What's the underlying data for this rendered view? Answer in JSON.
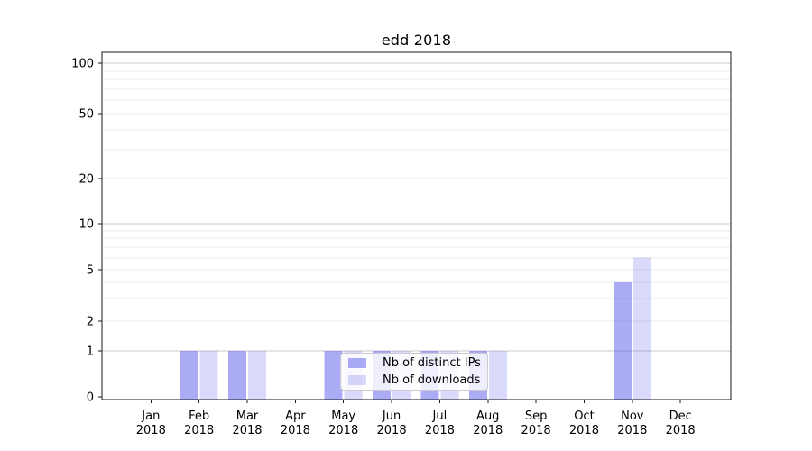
{
  "chart_data": {
    "type": "bar",
    "title": "edd 2018",
    "categories": [
      "Jan",
      "Feb",
      "Mar",
      "Apr",
      "May",
      "Jun",
      "Jul",
      "Aug",
      "Sep",
      "Oct",
      "Nov",
      "Dec"
    ],
    "x_year": "2018",
    "series": [
      {
        "name": "Nb of distinct IPs",
        "color": "#4646eb73",
        "values": [
          0,
          1,
          1,
          0,
          1,
          1,
          1,
          1,
          0,
          0,
          4,
          0
        ]
      },
      {
        "name": "Nb of downloads",
        "color": "#4646eb33",
        "values": [
          0,
          1,
          1,
          0,
          1,
          1,
          1,
          1,
          0,
          0,
          6,
          0
        ]
      }
    ],
    "y_ticks": [
      0,
      1,
      2,
      5,
      10,
      20,
      50,
      100
    ],
    "y_major_gridlines": [
      1,
      10,
      100
    ],
    "y_minor_gridlines": [
      2,
      3,
      4,
      5,
      6,
      7,
      8,
      9,
      20,
      30,
      40,
      50,
      60,
      70,
      80,
      90
    ],
    "yscale": "symlog",
    "ylim": [
      0,
      120
    ],
    "grid": true,
    "legend_position": "lower center inside"
  },
  "colors": {
    "major_grid": "#c9c9c9",
    "minor_grid": "#ebebeb",
    "spine": "#1a1a1a",
    "tick_label": "#000000"
  }
}
